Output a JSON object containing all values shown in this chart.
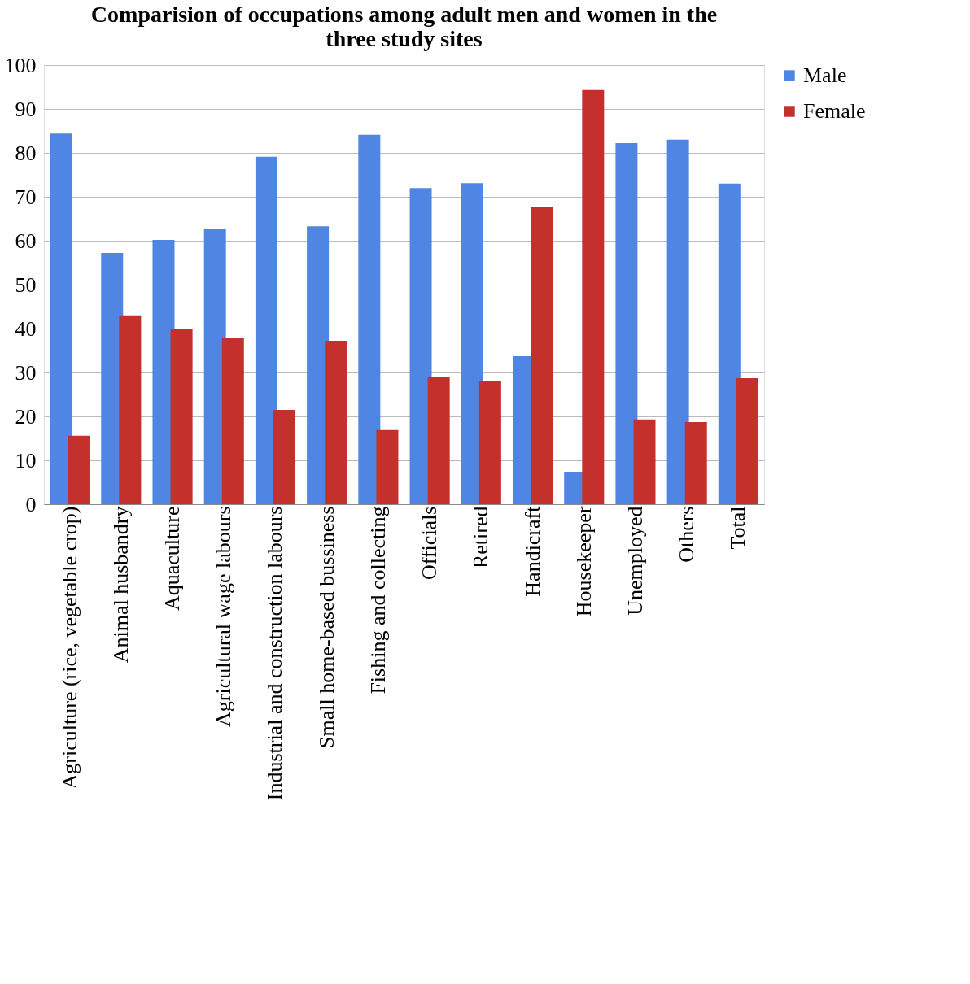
{
  "chart_data": {
    "type": "bar",
    "title": [
      "Comparision of occupations among adult men and women in the",
      "three study sites"
    ],
    "categories": [
      "Agriculture (rice, vegetable crop)",
      "Animal husbandry",
      "Aquaculture",
      "Agricultural wage labours",
      "Industrial and construction labours",
      "Small home-based bussiness",
      "Fishing and collecting",
      "Officials",
      "Retired",
      "Handicraft",
      "Housekeeper",
      "Unemployed",
      "Others",
      "Total"
    ],
    "series": [
      {
        "name": "Male",
        "color": "#4f86e3",
        "values": [
          84.4,
          57.2,
          60.2,
          62.6,
          79.1,
          63.3,
          84.1,
          72.0,
          73.1,
          33.7,
          7.2,
          82.2,
          83.0,
          73.0
        ]
      },
      {
        "name": "Female",
        "color": "#c4302b",
        "values": [
          15.6,
          43.0,
          40.0,
          37.8,
          21.5,
          37.2,
          16.9,
          28.9,
          28.0,
          67.6,
          94.3,
          19.3,
          18.7,
          28.7
        ]
      }
    ],
    "ylim": [
      0,
      100
    ],
    "yticks": [
      0,
      10,
      20,
      30,
      40,
      50,
      60,
      70,
      80,
      90,
      100
    ],
    "grid": "y",
    "legend": "right"
  }
}
